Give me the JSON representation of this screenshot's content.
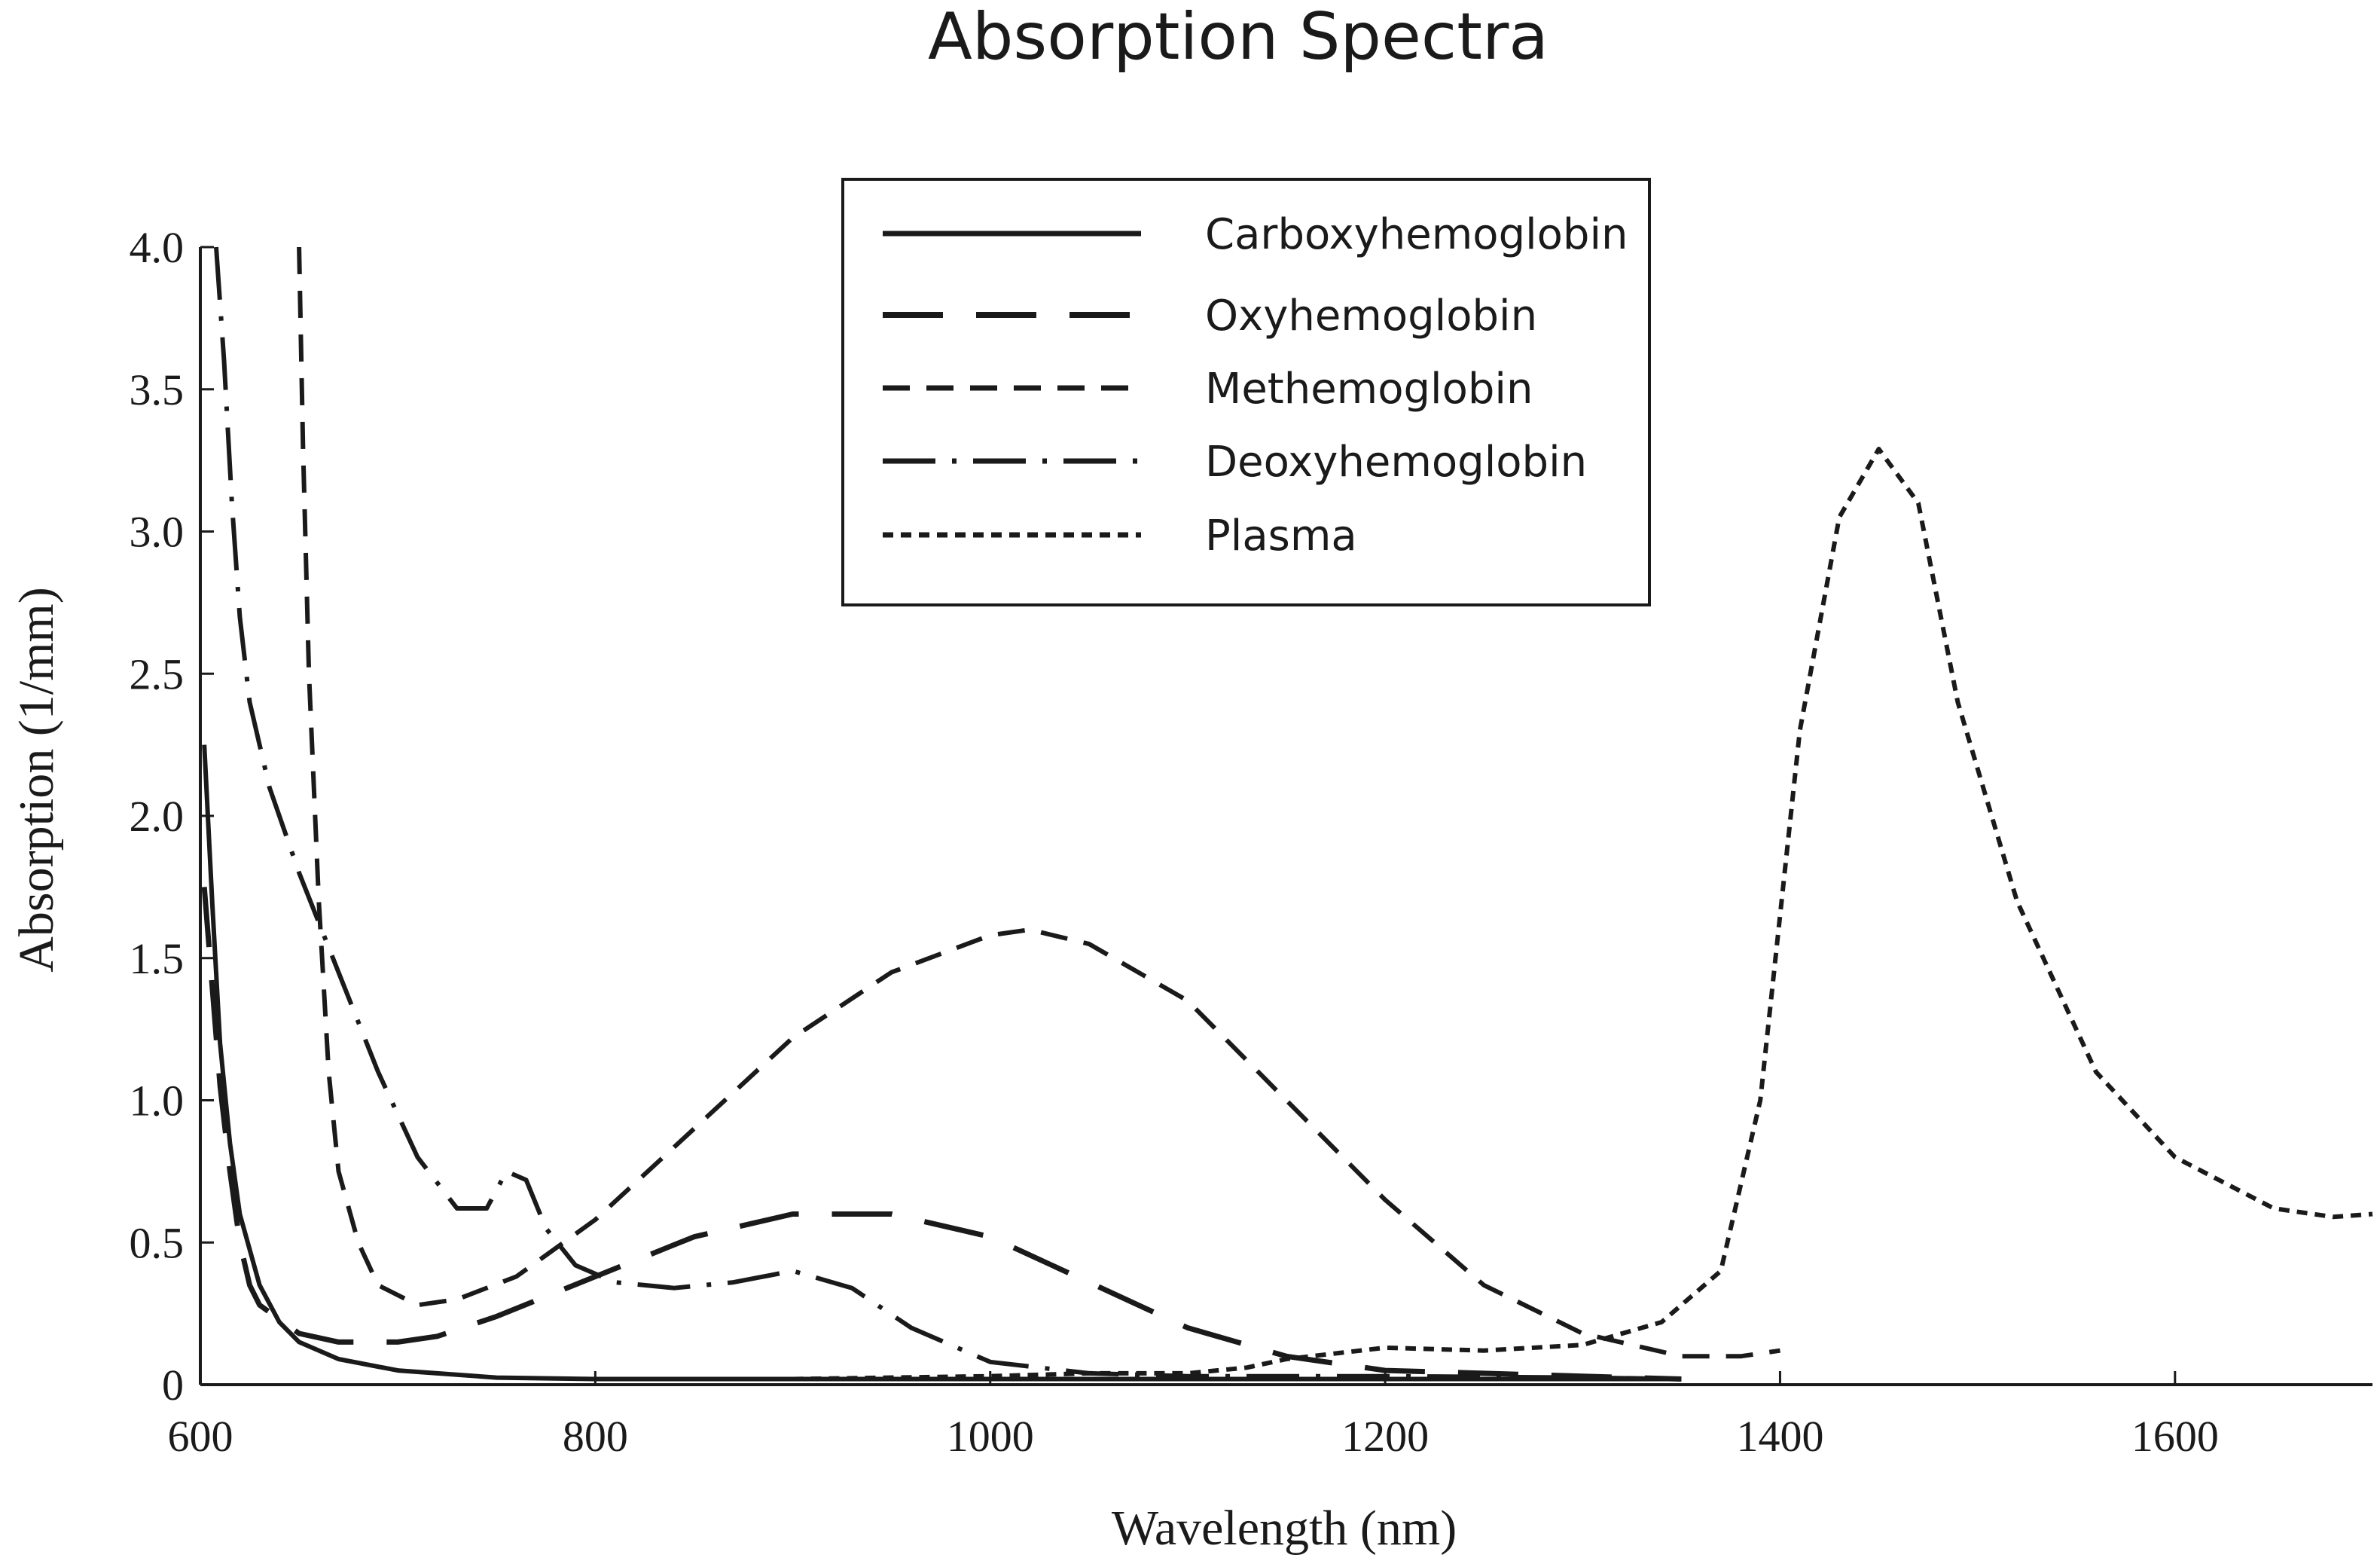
{
  "chart_data": {
    "type": "line",
    "title": "Absorption Spectra",
    "xlabel": "Wavelength (nm)",
    "ylabel": "Absorption (1/mm)",
    "xlim": [
      600,
      1700
    ],
    "ylim": [
      0,
      4.0
    ],
    "x_ticks": [
      "600",
      "800",
      "1000",
      "1200",
      "1400",
      "1600"
    ],
    "x_tick_values": [
      600,
      800,
      1000,
      1200,
      1400,
      1600
    ],
    "y_ticks": [
      "0",
      "0.5",
      "1.0",
      "1.5",
      "2.0",
      "2.5",
      "3.0",
      "3.5",
      "4.0"
    ],
    "y_tick_values": [
      0,
      0.5,
      1.0,
      1.5,
      2.0,
      2.5,
      3.0,
      3.5,
      4.0
    ],
    "grid": false,
    "legend_position": "top-center",
    "series": [
      {
        "name": "Carboxyhemoglobin",
        "dash": "solid",
        "points": [
          [
            602,
            2.25
          ],
          [
            606,
            1.7
          ],
          [
            610,
            1.2
          ],
          [
            615,
            0.85
          ],
          [
            620,
            0.6
          ],
          [
            630,
            0.35
          ],
          [
            640,
            0.22
          ],
          [
            650,
            0.15
          ],
          [
            670,
            0.09
          ],
          [
            700,
            0.05
          ],
          [
            750,
            0.025
          ],
          [
            800,
            0.02
          ],
          [
            900,
            0.02
          ],
          [
            1000,
            0.02
          ],
          [
            1100,
            0.02
          ],
          [
            1200,
            0.02
          ],
          [
            1300,
            0.02
          ],
          [
            1350,
            0.02
          ]
        ]
      },
      {
        "name": "Oxyhemoglobin",
        "dash": "long-dash",
        "points": [
          [
            602,
            1.75
          ],
          [
            606,
            1.4
          ],
          [
            610,
            1.05
          ],
          [
            615,
            0.75
          ],
          [
            620,
            0.5
          ],
          [
            625,
            0.35
          ],
          [
            630,
            0.28
          ],
          [
            650,
            0.18
          ],
          [
            670,
            0.15
          ],
          [
            700,
            0.15
          ],
          [
            720,
            0.17
          ],
          [
            750,
            0.24
          ],
          [
            800,
            0.38
          ],
          [
            850,
            0.52
          ],
          [
            900,
            0.6
          ],
          [
            950,
            0.6
          ],
          [
            1000,
            0.52
          ],
          [
            1050,
            0.36
          ],
          [
            1100,
            0.2
          ],
          [
            1150,
            0.1
          ],
          [
            1200,
            0.05
          ],
          [
            1300,
            0.03
          ],
          [
            1350,
            0.02
          ]
        ]
      },
      {
        "name": "Methemoglobin",
        "dash": "dash",
        "points": [
          [
            650,
            4.0
          ],
          [
            652,
            3.3
          ],
          [
            655,
            2.5
          ],
          [
            660,
            1.7
          ],
          [
            665,
            1.1
          ],
          [
            670,
            0.75
          ],
          [
            680,
            0.5
          ],
          [
            690,
            0.35
          ],
          [
            710,
            0.28
          ],
          [
            730,
            0.3
          ],
          [
            760,
            0.38
          ],
          [
            800,
            0.58
          ],
          [
            850,
            0.9
          ],
          [
            900,
            1.22
          ],
          [
            950,
            1.45
          ],
          [
            1000,
            1.58
          ],
          [
            1020,
            1.6
          ],
          [
            1050,
            1.55
          ],
          [
            1100,
            1.35
          ],
          [
            1150,
            1.0
          ],
          [
            1200,
            0.65
          ],
          [
            1250,
            0.35
          ],
          [
            1300,
            0.18
          ],
          [
            1350,
            0.1
          ],
          [
            1380,
            0.1
          ],
          [
            1400,
            0.12
          ]
        ]
      },
      {
        "name": "Deoxyhemoglobin",
        "dash": "dash-dot",
        "points": [
          [
            608,
            4.0
          ],
          [
            612,
            3.6
          ],
          [
            616,
            3.1
          ],
          [
            620,
            2.7
          ],
          [
            625,
            2.4
          ],
          [
            635,
            2.1
          ],
          [
            650,
            1.8
          ],
          [
            670,
            1.45
          ],
          [
            690,
            1.1
          ],
          [
            710,
            0.8
          ],
          [
            730,
            0.62
          ],
          [
            745,
            0.62
          ],
          [
            755,
            0.75
          ],
          [
            765,
            0.72
          ],
          [
            775,
            0.55
          ],
          [
            790,
            0.42
          ],
          [
            810,
            0.36
          ],
          [
            840,
            0.34
          ],
          [
            870,
            0.36
          ],
          [
            900,
            0.4
          ],
          [
            930,
            0.34
          ],
          [
            960,
            0.2
          ],
          [
            1000,
            0.08
          ],
          [
            1050,
            0.04
          ],
          [
            1100,
            0.03
          ],
          [
            1200,
            0.03
          ],
          [
            1300,
            0.025
          ],
          [
            1350,
            0.02
          ]
        ]
      },
      {
        "name": "Plasma",
        "dash": "dot",
        "points": [
          [
            900,
            0.02
          ],
          [
            1000,
            0.03
          ],
          [
            1050,
            0.04
          ],
          [
            1100,
            0.04
          ],
          [
            1130,
            0.06
          ],
          [
            1150,
            0.09
          ],
          [
            1200,
            0.13
          ],
          [
            1250,
            0.12
          ],
          [
            1300,
            0.14
          ],
          [
            1340,
            0.22
          ],
          [
            1370,
            0.4
          ],
          [
            1390,
            1.0
          ],
          [
            1410,
            2.3
          ],
          [
            1430,
            3.05
          ],
          [
            1450,
            3.29
          ],
          [
            1470,
            3.1
          ],
          [
            1490,
            2.4
          ],
          [
            1520,
            1.7
          ],
          [
            1560,
            1.1
          ],
          [
            1600,
            0.8
          ],
          [
            1650,
            0.62
          ],
          [
            1680,
            0.59
          ],
          [
            1700,
            0.6
          ]
        ]
      }
    ]
  }
}
